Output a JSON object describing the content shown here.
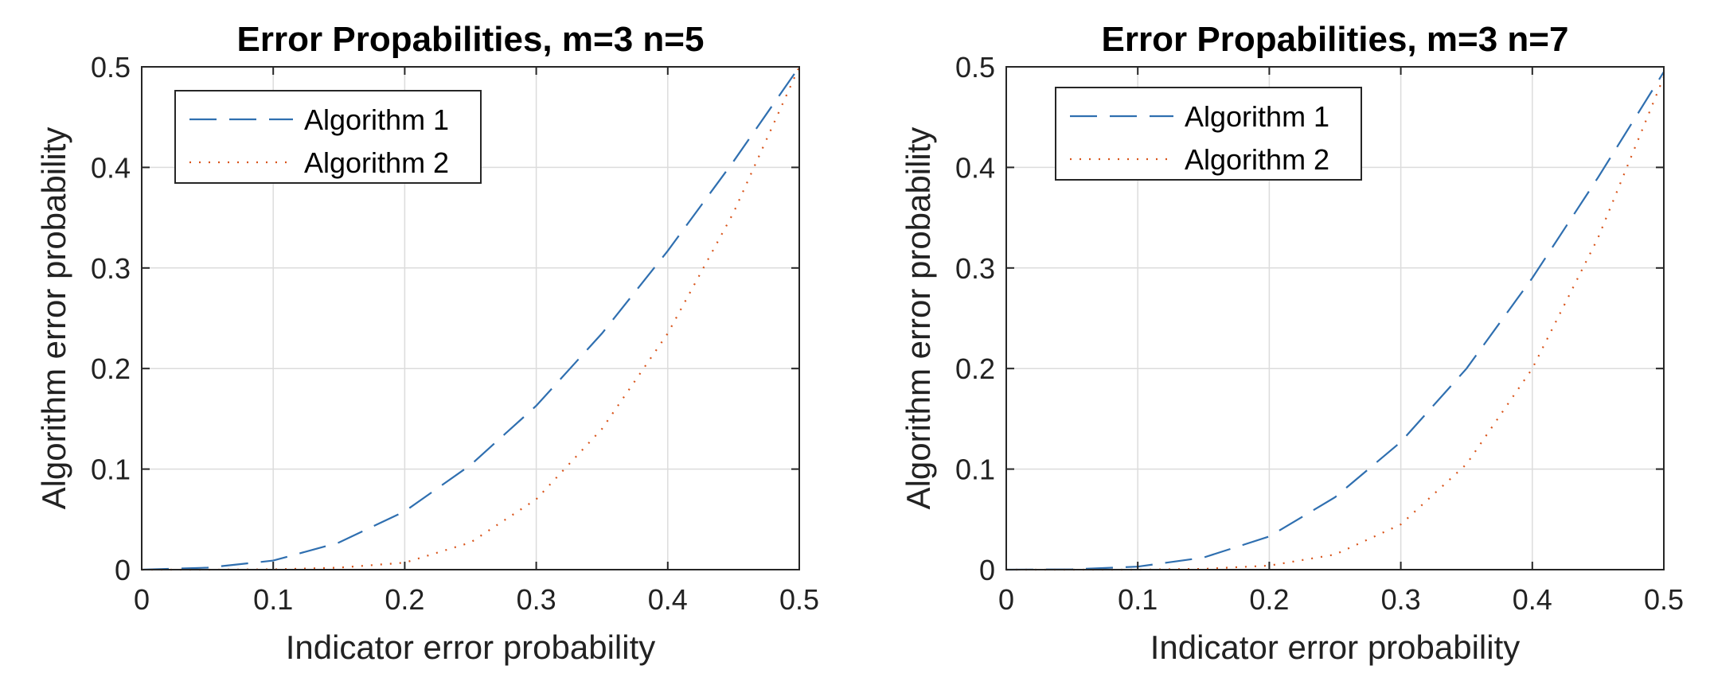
{
  "chart_data": [
    {
      "type": "line",
      "title": "Error Propabilities, m=3 n=5",
      "xlabel": "Indicator error probability",
      "ylabel": "Algorithm error probability",
      "xlim": [
        0,
        0.5
      ],
      "ylim": [
        0,
        0.5
      ],
      "xticks": [
        "0",
        "0.1",
        "0.2",
        "0.3",
        "0.4",
        "0.5"
      ],
      "yticks": [
        "0",
        "0.1",
        "0.2",
        "0.3",
        "0.4",
        "0.5"
      ],
      "grid": true,
      "legend_position": "top-left",
      "series": [
        {
          "name": "Algorithm 1",
          "color": "#2f6fb0",
          "style": "dashed",
          "x": [
            0,
            0.05,
            0.1,
            0.15,
            0.2,
            0.25,
            0.3,
            0.35,
            0.4,
            0.45,
            0.5
          ],
          "y": [
            0,
            0.002,
            0.009,
            0.027,
            0.058,
            0.104,
            0.163,
            0.235,
            0.317,
            0.406,
            0.5
          ]
        },
        {
          "name": "Algorithm 2",
          "color": "#d9541a",
          "style": "dotted",
          "x": [
            0,
            0.05,
            0.1,
            0.15,
            0.2,
            0.25,
            0.3,
            0.35,
            0.4,
            0.45,
            0.5
          ],
          "y": [
            0,
            0,
            0.0003,
            0.002,
            0.007,
            0.027,
            0.07,
            0.14,
            0.235,
            0.355,
            0.5
          ]
        }
      ]
    },
    {
      "type": "line",
      "title": "Error Propabilities, m=3 n=7",
      "xlabel": "Indicator error probability",
      "ylabel": "Algorithm error probability",
      "xlim": [
        0,
        0.5
      ],
      "ylim": [
        0,
        0.5
      ],
      "xticks": [
        "0",
        "0.1",
        "0.2",
        "0.3",
        "0.4",
        "0.5"
      ],
      "yticks": [
        "0",
        "0.1",
        "0.2",
        "0.3",
        "0.4",
        "0.5"
      ],
      "grid": true,
      "legend_position": "top-left",
      "series": [
        {
          "name": "Algorithm 1",
          "color": "#2f6fb0",
          "style": "dashed",
          "x": [
            0,
            0.05,
            0.1,
            0.15,
            0.2,
            0.25,
            0.3,
            0.35,
            0.4,
            0.45,
            0.5
          ],
          "y": [
            0,
            0.0003,
            0.003,
            0.012,
            0.033,
            0.072,
            0.127,
            0.2,
            0.29,
            0.39,
            0.495
          ]
        },
        {
          "name": "Algorithm 2",
          "color": "#d9541a",
          "style": "dotted",
          "x": [
            0,
            0.05,
            0.1,
            0.15,
            0.2,
            0.25,
            0.3,
            0.35,
            0.4,
            0.45,
            0.5
          ],
          "y": [
            0,
            0,
            0,
            0.0008,
            0.004,
            0.015,
            0.045,
            0.105,
            0.2,
            0.33,
            0.49
          ]
        }
      ]
    }
  ]
}
